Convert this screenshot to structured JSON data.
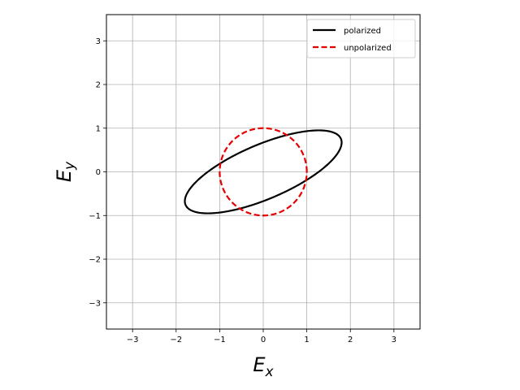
{
  "chart_data": {
    "type": "line",
    "title": "",
    "xlabel": "E_x",
    "ylabel": "E_y",
    "xlabel_main": "E",
    "xlabel_sub": "x",
    "ylabel_main": "E",
    "ylabel_sub": "y",
    "xlim": [
      -3.6,
      3.6
    ],
    "ylim": [
      -3.6,
      3.6
    ],
    "xticks": [
      -3,
      -2,
      -1,
      0,
      1,
      2,
      3
    ],
    "yticks": [
      -3,
      -2,
      -1,
      0,
      1,
      2,
      3
    ],
    "xtick_labels": [
      "−3",
      "−2",
      "−1",
      "0",
      "1",
      "2",
      "3"
    ],
    "ytick_labels": [
      "−3",
      "−2",
      "−1",
      "0",
      "1",
      "2",
      "3"
    ],
    "grid": true,
    "legend_position": "top-right",
    "series": [
      {
        "name": "polarized",
        "color": "#000000",
        "dash": "solid",
        "shape": "ellipse",
        "ellipse": {
          "center": [
            0,
            0
          ],
          "x_amplitude": 1.8,
          "y_amplitude": 0.95,
          "phase_deg": 45
        }
      },
      {
        "name": "unpolarized",
        "color": "#e60000",
        "dash": "dashed",
        "shape": "circle",
        "ellipse": {
          "center": [
            0,
            0
          ],
          "x_amplitude": 1.0,
          "y_amplitude": 1.0,
          "phase_deg": 90
        }
      }
    ]
  }
}
